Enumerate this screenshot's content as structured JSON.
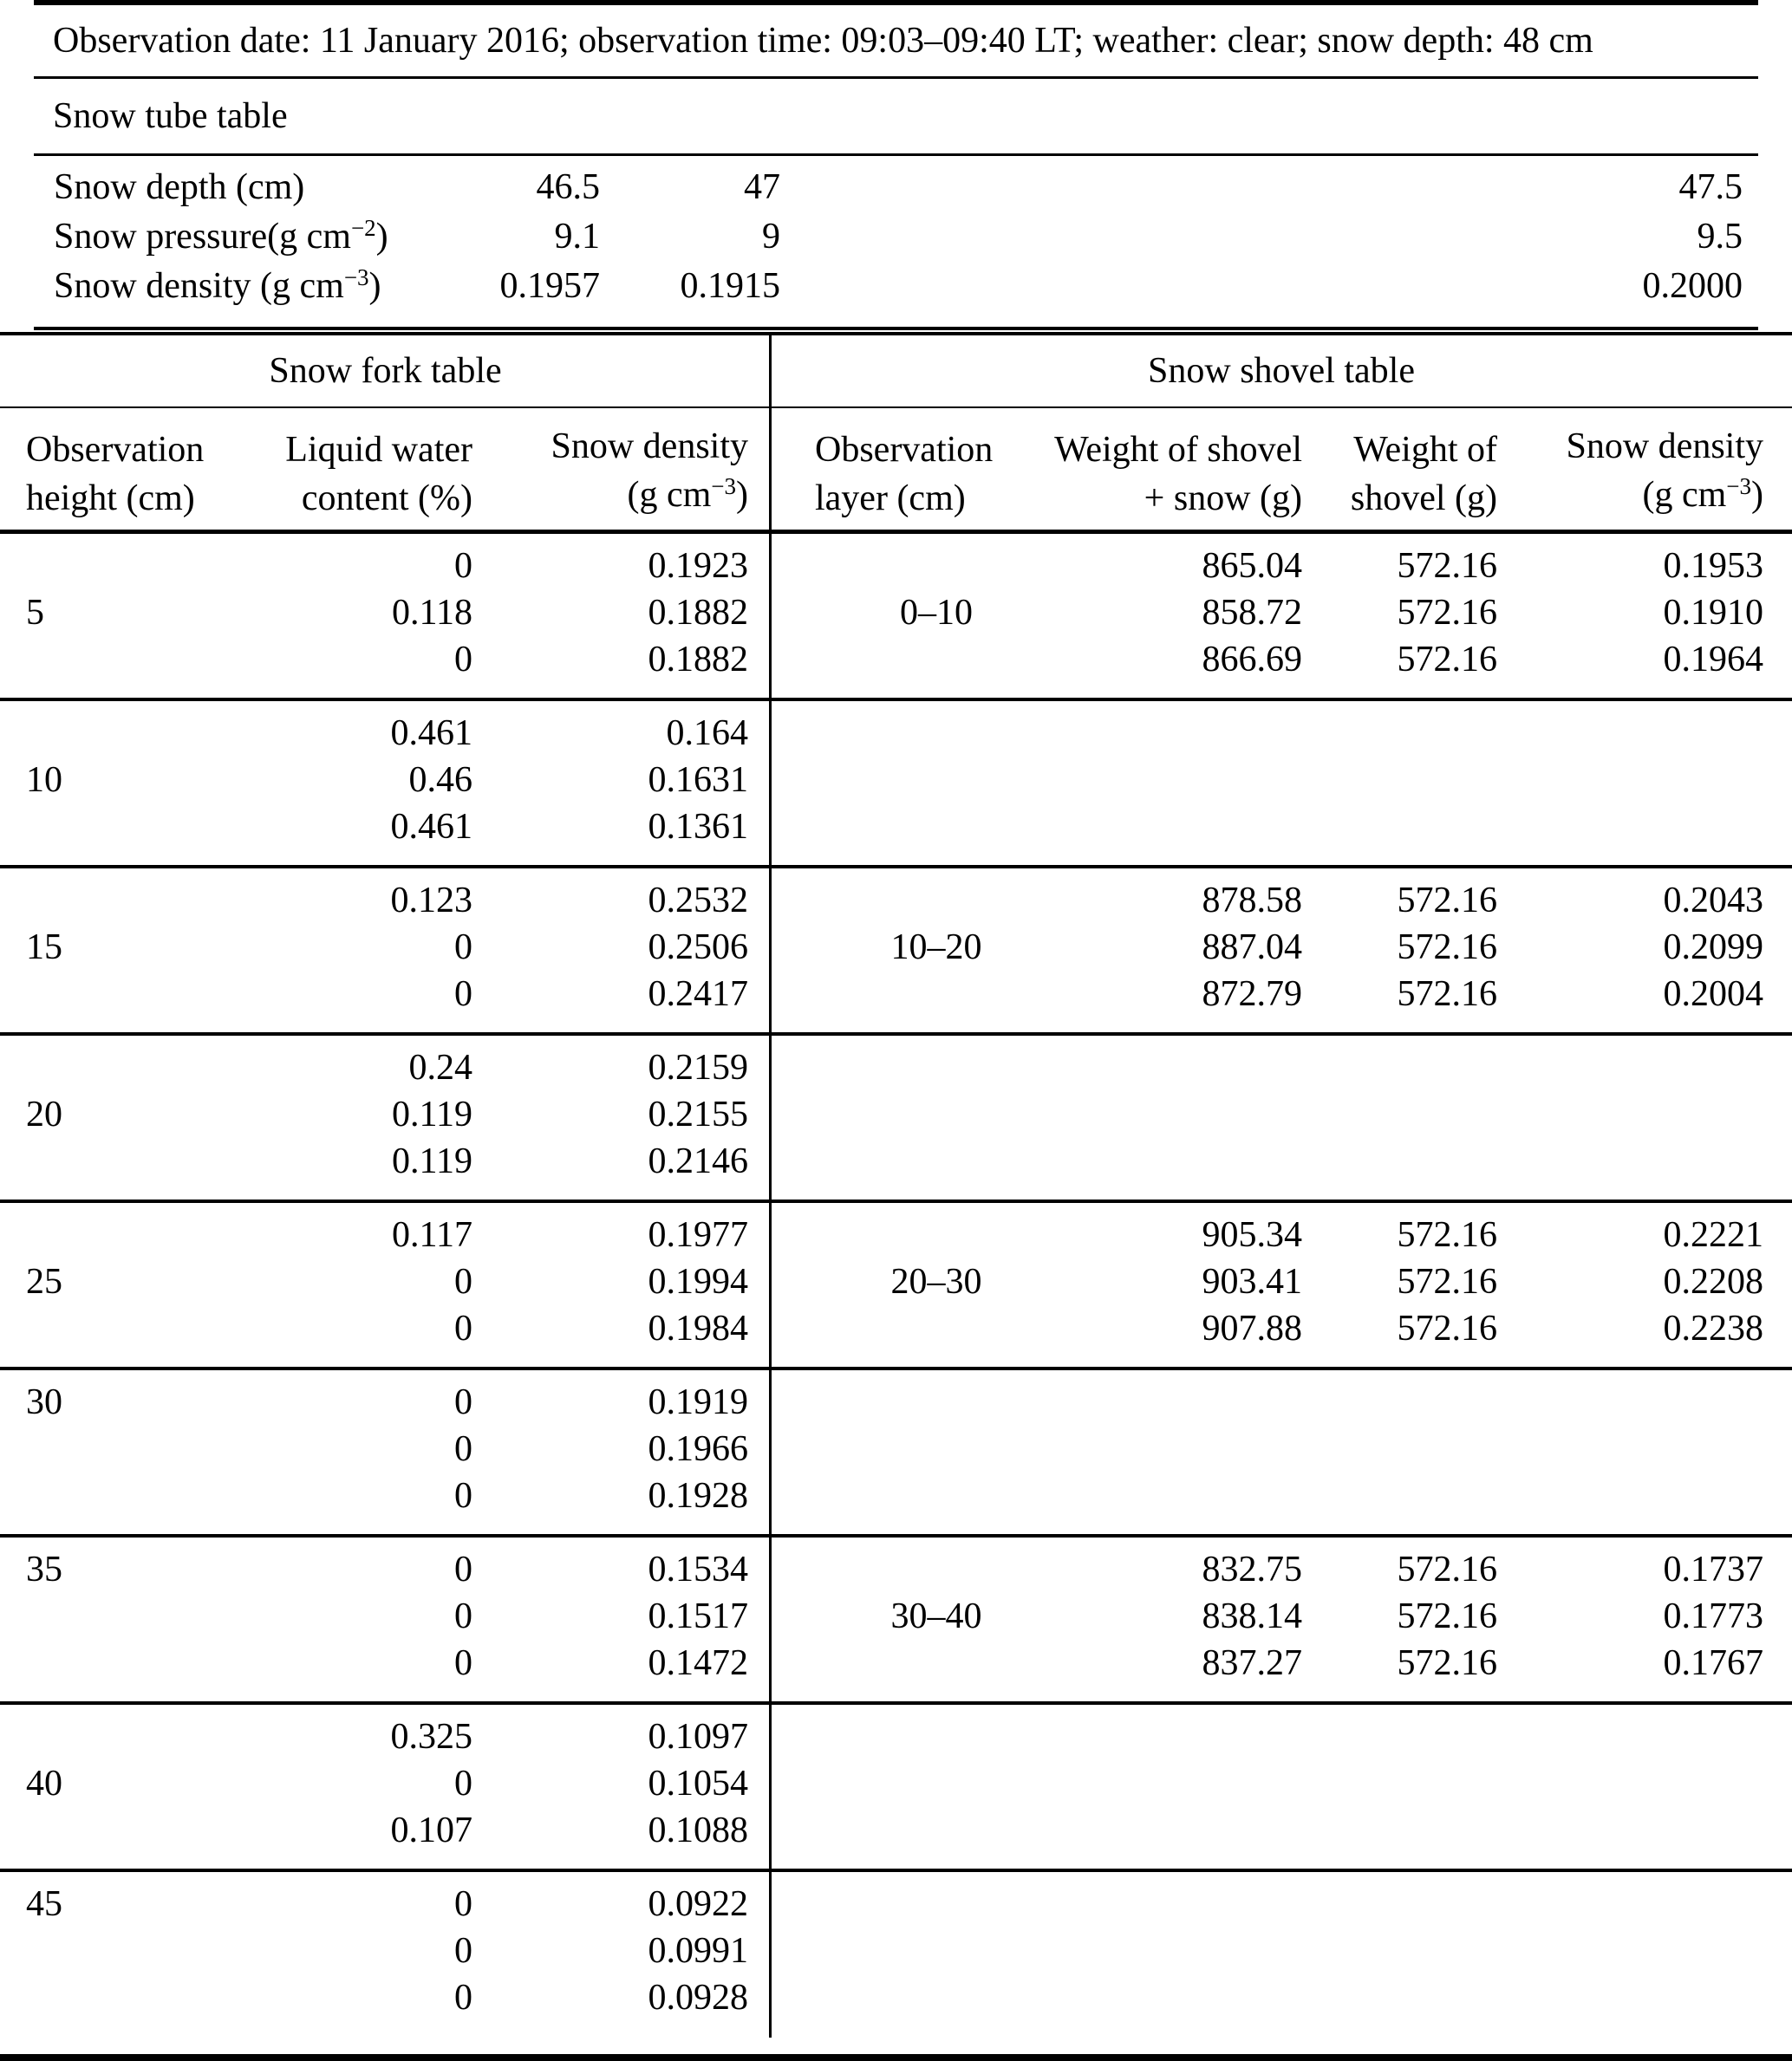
{
  "observation_line": "Observation date: 11 January 2016; observation time: 09:03–09:40 LT; weather: clear; snow depth: 48 cm",
  "snow_tube": {
    "title": "Snow tube table",
    "rows": [
      {
        "label": {
          "pre": "Snow depth (cm)",
          "sup": "",
          "post": ""
        },
        "values": [
          "46.5",
          "47",
          "47.5"
        ]
      },
      {
        "label": {
          "pre": "Snow pressure(g cm",
          "sup": "−2",
          "post": ")"
        },
        "values": [
          "9.1",
          "9",
          "9.5"
        ]
      },
      {
        "label": {
          "pre": "Snow density (g cm",
          "sup": "−3",
          "post": ")"
        },
        "values": [
          "0.1957",
          "0.1915",
          "0.2000"
        ]
      }
    ]
  },
  "snow_fork": {
    "title": "Snow fork table",
    "col_height": {
      "line1": "Observation",
      "line2": "height (cm)"
    },
    "col_lwc": {
      "line1": "Liquid water",
      "line2": "content (%)"
    },
    "col_density": {
      "line1": "Snow density",
      "line2_pre": "(g cm",
      "line2_sup": "−3",
      "line2_post": ")"
    }
  },
  "snow_shovel": {
    "title": "Snow shovel table",
    "col_layer": {
      "line1": "Observation",
      "line2": "layer (cm)"
    },
    "col_weight_snow": {
      "line1": "Weight of shovel",
      "line2": "+ snow (g)"
    },
    "col_weight_shovel": {
      "line1": "Weight of",
      "line2": "shovel (g)"
    },
    "col_density": {
      "line1": "Snow density",
      "line2_pre": "(g cm",
      "line2_sup": "−3",
      "line2_post": ")"
    }
  },
  "groups": [
    {
      "height": "5",
      "height_row": 1,
      "fork_rows": [
        [
          "0",
          "0.1923"
        ],
        [
          "0.118",
          "0.1882"
        ],
        [
          "0",
          "0.1882"
        ]
      ],
      "layer": "0–10",
      "layer_row": 1,
      "shovel_rows": [
        [
          "865.04",
          "572.16",
          "0.1953"
        ],
        [
          "858.72",
          "572.16",
          "0.1910"
        ],
        [
          "866.69",
          "572.16",
          "0.1964"
        ]
      ]
    },
    {
      "height": "10",
      "height_row": 1,
      "fork_rows": [
        [
          "0.461",
          "0.164"
        ],
        [
          "0.46",
          "0.1631"
        ],
        [
          "0.461",
          "0.1361"
        ]
      ],
      "layer": "",
      "layer_row": -1,
      "shovel_rows": [
        [],
        [],
        []
      ]
    },
    {
      "height": "15",
      "height_row": 1,
      "fork_rows": [
        [
          "0.123",
          "0.2532"
        ],
        [
          "0",
          "0.2506"
        ],
        [
          "0",
          "0.2417"
        ]
      ],
      "layer": "10–20",
      "layer_row": 1,
      "shovel_rows": [
        [
          "878.58",
          "572.16",
          "0.2043"
        ],
        [
          "887.04",
          "572.16",
          "0.2099"
        ],
        [
          "872.79",
          "572.16",
          "0.2004"
        ]
      ]
    },
    {
      "height": "20",
      "height_row": 1,
      "fork_rows": [
        [
          "0.24",
          "0.2159"
        ],
        [
          "0.119",
          "0.2155"
        ],
        [
          "0.119",
          "0.2146"
        ]
      ],
      "layer": "",
      "layer_row": -1,
      "shovel_rows": [
        [],
        [],
        []
      ]
    },
    {
      "height": "25",
      "height_row": 1,
      "fork_rows": [
        [
          "0.117",
          "0.1977"
        ],
        [
          "0",
          "0.1994"
        ],
        [
          "0",
          "0.1984"
        ]
      ],
      "layer": "20–30",
      "layer_row": 1,
      "shovel_rows": [
        [
          "905.34",
          "572.16",
          "0.2221"
        ],
        [
          "903.41",
          "572.16",
          "0.2208"
        ],
        [
          "907.88",
          "572.16",
          "0.2238"
        ]
      ]
    },
    {
      "height": "30",
      "height_row": 0,
      "fork_rows": [
        [
          "0",
          "0.1919"
        ],
        [
          "0",
          "0.1966"
        ],
        [
          "0",
          "0.1928"
        ]
      ],
      "layer": "",
      "layer_row": -1,
      "shovel_rows": [
        [],
        [],
        []
      ]
    },
    {
      "height": "35",
      "height_row": 0,
      "fork_rows": [
        [
          "0",
          "0.1534"
        ],
        [
          "0",
          "0.1517"
        ],
        [
          "0",
          "0.1472"
        ]
      ],
      "layer": "30–40",
      "layer_row": 1,
      "shovel_rows": [
        [
          "832.75",
          "572.16",
          "0.1737"
        ],
        [
          "838.14",
          "572.16",
          "0.1773"
        ],
        [
          "837.27",
          "572.16",
          "0.1767"
        ]
      ]
    },
    {
      "height": "40",
      "height_row": 1,
      "fork_rows": [
        [
          "0.325",
          "0.1097"
        ],
        [
          "0",
          "0.1054"
        ],
        [
          "0.107",
          "0.1088"
        ]
      ],
      "layer": "",
      "layer_row": -1,
      "shovel_rows": [
        [],
        [],
        []
      ]
    },
    {
      "height": "45",
      "height_row": 0,
      "fork_rows": [
        [
          "0",
          "0.0922"
        ],
        [
          "0",
          "0.0991"
        ],
        [
          "0",
          "0.0928"
        ]
      ],
      "layer": "",
      "layer_row": -1,
      "shovel_rows": [
        [],
        [],
        []
      ]
    }
  ]
}
